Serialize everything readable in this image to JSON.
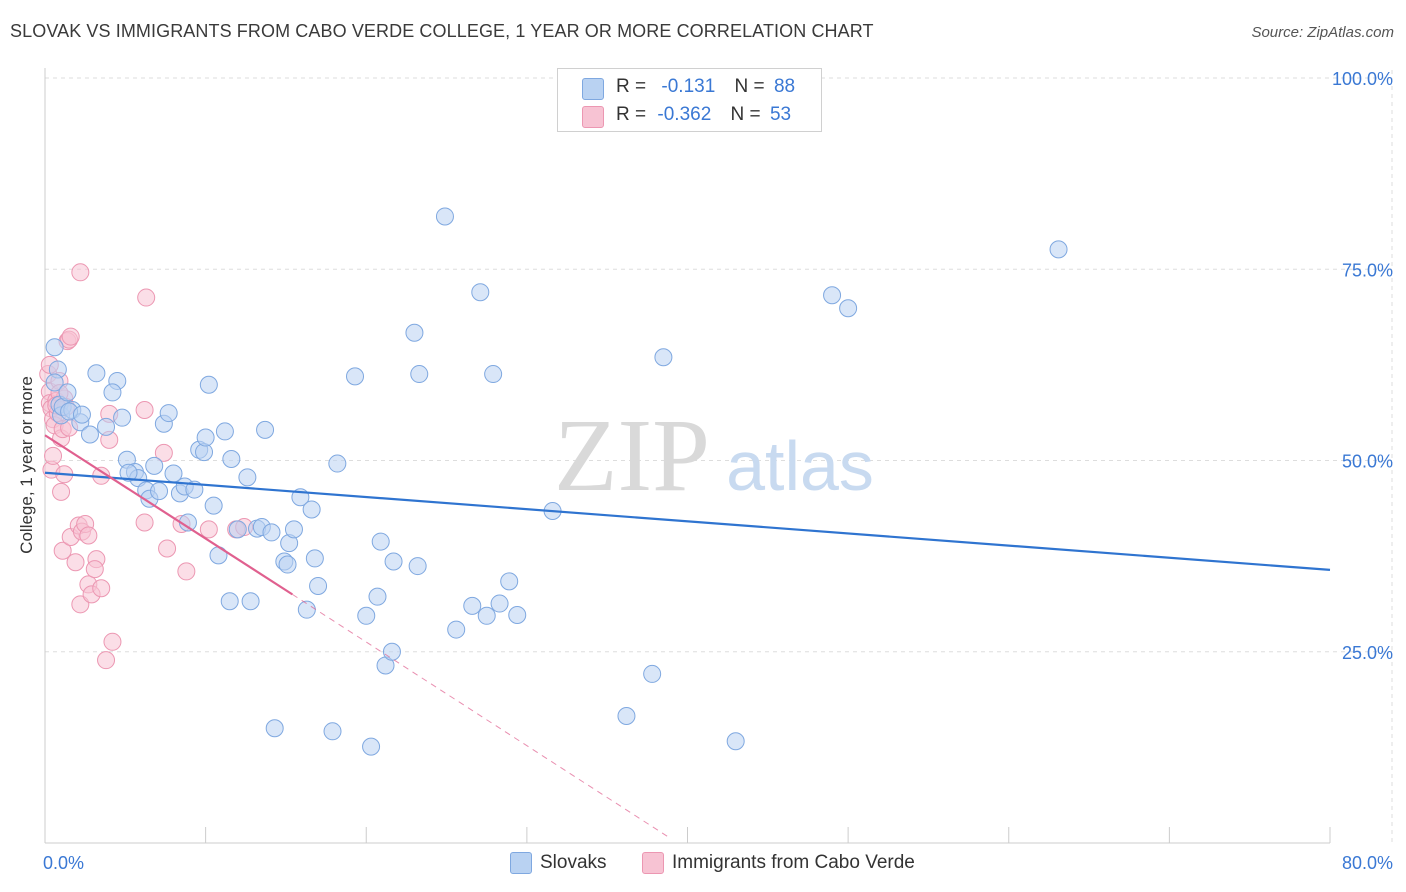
{
  "header": {
    "title": "SLOVAK VS IMMIGRANTS FROM CABO VERDE COLLEGE, 1 YEAR OR MORE CORRELATION CHART",
    "source": "Source: ZipAtlas.com"
  },
  "watermark": {
    "zip": "ZIP",
    "atlas": "atlas"
  },
  "legend_top": {
    "rows": [
      {
        "r_label": "R =",
        "r_value": "-0.131",
        "n_label": "N =",
        "n_value": "88"
      },
      {
        "r_label": "R =",
        "r_value": "-0.362",
        "n_label": "N =",
        "n_value": "53"
      }
    ]
  },
  "legend_bottom": {
    "series1": "Slovaks",
    "series2": "Immigrants from Cabo Verde"
  },
  "colors": {
    "blue_fill": "#b9d2f2",
    "blue_stroke": "#7fa8e0",
    "blue_line": "#2f74d0",
    "pink_fill": "#f7c3d3",
    "pink_stroke": "#ec97b2",
    "pink_line": "#e0608f",
    "grid": "#dddddd",
    "axis_text": "#3a78d4"
  },
  "chart_data": {
    "type": "scatter",
    "title": "SLOVAK VS IMMIGRANTS FROM CABO VERDE COLLEGE, 1 YEAR OR MORE CORRELATION CHART",
    "xlabel": "",
    "ylabel": "College, 1 year or more",
    "xlim": [
      0,
      80
    ],
    "ylim": [
      0,
      100
    ],
    "x_tick_labels": [
      "0.0%",
      "80.0%"
    ],
    "y_ticks": [
      25,
      50,
      75,
      100
    ],
    "y_tick_labels": [
      "25.0%",
      "50.0%",
      "75.0%",
      "100.0%"
    ],
    "grid": true,
    "series": [
      {
        "name": "Slovaks",
        "R": -0.131,
        "N": 88,
        "trend": {
          "x": [
            0,
            80
          ],
          "y": [
            48.4,
            35.7
          ]
        },
        "points": [
          [
            0.6,
            64.8
          ],
          [
            0.8,
            61.9
          ],
          [
            0.6,
            60.2
          ],
          [
            0.9,
            57.3
          ],
          [
            1.0,
            55.9
          ],
          [
            1.1,
            57.0
          ],
          [
            1.4,
            58.9
          ],
          [
            1.7,
            56.6
          ],
          [
            2.2,
            55.0
          ],
          [
            3.2,
            61.4
          ],
          [
            4.5,
            60.4
          ],
          [
            4.2,
            58.9
          ],
          [
            2.8,
            53.4
          ],
          [
            3.8,
            54.4
          ],
          [
            4.8,
            55.6
          ],
          [
            5.1,
            50.1
          ],
          [
            5.6,
            48.5
          ],
          [
            5.8,
            47.7
          ],
          [
            6.3,
            46.1
          ],
          [
            6.5,
            45.0
          ],
          [
            6.8,
            49.3
          ],
          [
            7.1,
            46.0
          ],
          [
            7.4,
            54.8
          ],
          [
            7.7,
            56.2
          ],
          [
            8.0,
            48.3
          ],
          [
            8.4,
            45.7
          ],
          [
            8.7,
            46.6
          ],
          [
            8.9,
            41.9
          ],
          [
            9.6,
            51.4
          ],
          [
            9.9,
            51.1
          ],
          [
            10.0,
            53.0
          ],
          [
            10.2,
            59.9
          ],
          [
            10.5,
            44.1
          ],
          [
            10.8,
            37.6
          ],
          [
            11.2,
            53.8
          ],
          [
            11.5,
            31.6
          ],
          [
            11.6,
            50.2
          ],
          [
            12.0,
            41.0
          ],
          [
            12.6,
            47.8
          ],
          [
            12.8,
            31.6
          ],
          [
            13.2,
            41.1
          ],
          [
            13.5,
            41.3
          ],
          [
            13.7,
            54.0
          ],
          [
            14.1,
            40.6
          ],
          [
            14.3,
            15.0
          ],
          [
            14.9,
            36.8
          ],
          [
            15.1,
            36.4
          ],
          [
            15.2,
            39.2
          ],
          [
            15.5,
            41.0
          ],
          [
            15.9,
            45.2
          ],
          [
            16.3,
            30.5
          ],
          [
            16.6,
            43.6
          ],
          [
            16.8,
            37.2
          ],
          [
            17.0,
            33.6
          ],
          [
            17.9,
            14.6
          ],
          [
            18.2,
            49.6
          ],
          [
            20.0,
            29.7
          ],
          [
            20.3,
            12.6
          ],
          [
            19.3,
            61.0
          ],
          [
            20.7,
            32.2
          ],
          [
            20.9,
            39.4
          ],
          [
            21.2,
            23.2
          ],
          [
            21.6,
            25.0
          ],
          [
            21.7,
            36.8
          ],
          [
            23.0,
            66.7
          ],
          [
            23.3,
            61.3
          ],
          [
            23.2,
            36.2
          ],
          [
            24.9,
            81.9
          ],
          [
            25.6,
            27.9
          ],
          [
            26.6,
            31.0
          ],
          [
            27.1,
            72.0
          ],
          [
            27.5,
            29.7
          ],
          [
            27.9,
            61.3
          ],
          [
            28.3,
            31.3
          ],
          [
            28.9,
            34.2
          ],
          [
            29.4,
            29.8
          ],
          [
            31.6,
            43.4
          ],
          [
            36.2,
            16.6
          ],
          [
            37.8,
            22.1
          ],
          [
            38.5,
            63.5
          ],
          [
            43.0,
            13.3
          ],
          [
            49.0,
            71.6
          ],
          [
            50.0,
            69.9
          ],
          [
            63.1,
            77.6
          ],
          [
            1.5,
            56.4
          ],
          [
            2.3,
            56.0
          ],
          [
            9.3,
            46.2
          ],
          [
            5.2,
            48.4
          ]
        ]
      },
      {
        "name": "Immigrants from Cabo Verde",
        "R": -0.362,
        "N": 53,
        "trend": {
          "x": [
            0,
            15.4
          ],
          "y": [
            53.3,
            32.5
          ]
        },
        "trend_dashed": {
          "x": [
            15.4,
            38.8
          ],
          "y": [
            32.5,
            0.8
          ]
        },
        "points": [
          [
            0.2,
            61.3
          ],
          [
            0.3,
            59.0
          ],
          [
            0.3,
            57.5
          ],
          [
            0.4,
            56.8
          ],
          [
            0.5,
            55.4
          ],
          [
            0.6,
            54.6
          ],
          [
            0.7,
            57.8
          ],
          [
            0.8,
            56.2
          ],
          [
            0.9,
            60.4
          ],
          [
            1.0,
            52.9
          ],
          [
            1.1,
            54.1
          ],
          [
            1.2,
            58.1
          ],
          [
            1.3,
            57.0
          ],
          [
            1.4,
            65.6
          ],
          [
            1.5,
            65.8
          ],
          [
            1.6,
            66.2
          ],
          [
            0.4,
            48.8
          ],
          [
            1.0,
            45.9
          ],
          [
            1.2,
            48.2
          ],
          [
            1.1,
            38.2
          ],
          [
            1.6,
            40.0
          ],
          [
            1.9,
            36.7
          ],
          [
            2.1,
            41.5
          ],
          [
            2.2,
            31.2
          ],
          [
            2.3,
            40.7
          ],
          [
            2.5,
            41.7
          ],
          [
            2.7,
            40.2
          ],
          [
            2.7,
            33.8
          ],
          [
            2.9,
            32.5
          ],
          [
            3.2,
            37.1
          ],
          [
            3.1,
            35.8
          ],
          [
            3.5,
            48.0
          ],
          [
            3.5,
            33.3
          ],
          [
            3.8,
            23.9
          ],
          [
            4.0,
            52.7
          ],
          [
            4.0,
            56.1
          ],
          [
            4.2,
            26.3
          ],
          [
            2.2,
            74.6
          ],
          [
            6.3,
            71.3
          ],
          [
            6.2,
            56.6
          ],
          [
            6.2,
            41.9
          ],
          [
            7.4,
            51.0
          ],
          [
            7.6,
            38.5
          ],
          [
            8.5,
            41.7
          ],
          [
            8.8,
            35.5
          ],
          [
            10.2,
            41.0
          ],
          [
            11.9,
            41.0
          ],
          [
            12.4,
            41.3
          ],
          [
            0.5,
            50.6
          ],
          [
            0.3,
            62.5
          ],
          [
            0.9,
            58.8
          ],
          [
            1.5,
            54.3
          ],
          [
            0.7,
            57.2
          ]
        ]
      }
    ]
  }
}
